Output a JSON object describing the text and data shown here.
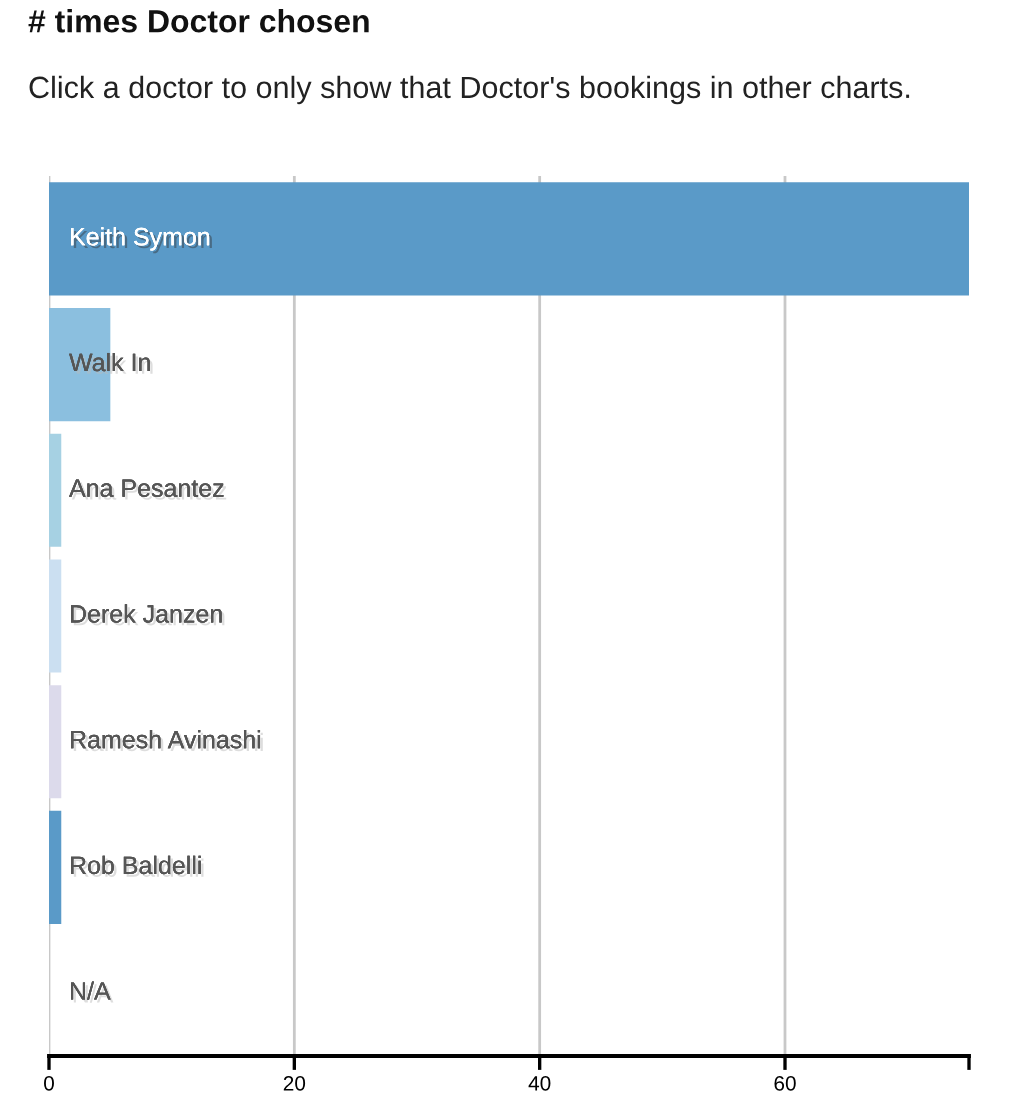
{
  "chart_data": {
    "type": "bar",
    "orientation": "horizontal",
    "title": "# times Doctor chosen",
    "subtitle": "Click a doctor to only show that Doctor's bookings in other charts.",
    "categories": [
      "Keith Symon",
      "Walk In",
      "Ana Pesantez",
      "Derek Janzen",
      "Ramesh Avinashi",
      "Rob Baldelli",
      "N/A"
    ],
    "values": [
      75,
      5,
      1,
      1,
      1,
      1,
      0
    ],
    "colors": [
      "#5a9ac8",
      "#8bbfdf",
      "#a6d1e3",
      "#cbdff1",
      "#dcdaeb",
      "#5a9ac8",
      "#eeeeee"
    ],
    "xlim": [
      0,
      75
    ],
    "xticks": [
      0,
      20,
      40,
      60,
      {
        "value": 75,
        "label": null
      }
    ],
    "grid": "x"
  }
}
